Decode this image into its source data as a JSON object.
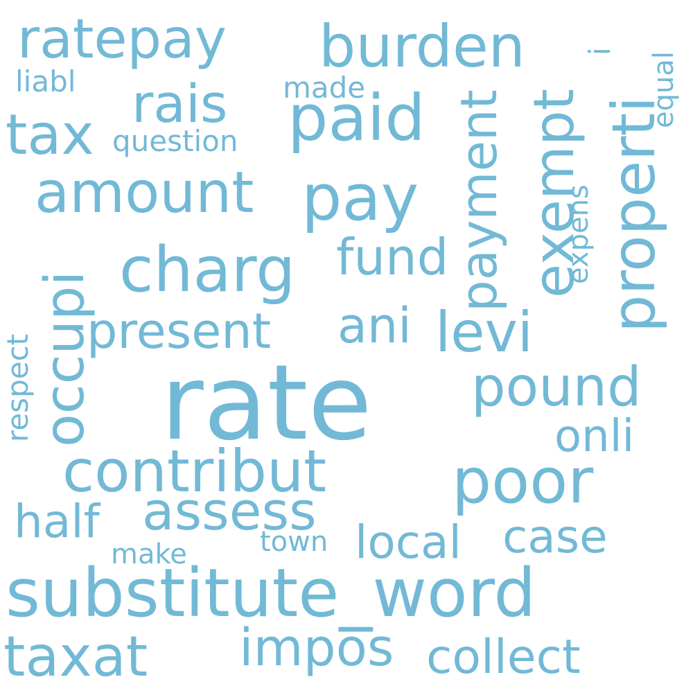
{
  "colors": {
    "background": "#ffffff",
    "word": "#72b9d6"
  },
  "words": {
    "rate": "rate",
    "substitute_word": "substitute_word",
    "pay": "pay",
    "amount": "amount",
    "charg": "charg",
    "contribut": "contribut",
    "burden": "burden",
    "ratepay": "ratepay",
    "paid": "paid",
    "tax": "tax",
    "rais": "rais",
    "properti": "properti",
    "exempt": "exempt",
    "payment": "payment",
    "occupi": "occupi",
    "present": "present",
    "levi": "levi",
    "fund": "fund",
    "ani": "ani",
    "pound": "pound",
    "poor": "poor",
    "onli": "onli",
    "assess": "assess",
    "half": "half",
    "local": "local",
    "case": "case",
    "town": "town",
    "make": "make",
    "taxat": "taxat",
    "impos": "impos",
    "collect": "collect",
    "question": "question",
    "made": "made",
    "liabl": "liabl",
    "equal": "equal",
    "expens": "expens",
    "respect": "respect",
    "i": "i"
  }
}
